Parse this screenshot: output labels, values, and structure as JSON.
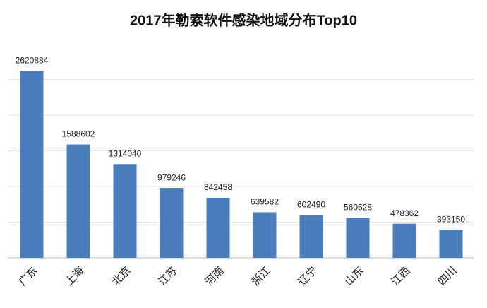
{
  "chart_data": {
    "type": "bar",
    "title": "2017年勒索软件感染地域分布Top10",
    "categories": [
      "广东",
      "上海",
      "北京",
      "江苏",
      "河南",
      "浙江",
      "辽宁",
      "山东",
      "江西",
      "四川"
    ],
    "values": [
      2620884,
      1588602,
      1314040,
      979246,
      842458,
      639582,
      602490,
      560528,
      478362,
      393150
    ],
    "color": "#4a7ebb",
    "ylim": [
      0,
      3000000
    ],
    "yticks": [
      0,
      500000,
      1000000,
      1500000,
      2000000,
      2500000
    ],
    "grid": true
  }
}
